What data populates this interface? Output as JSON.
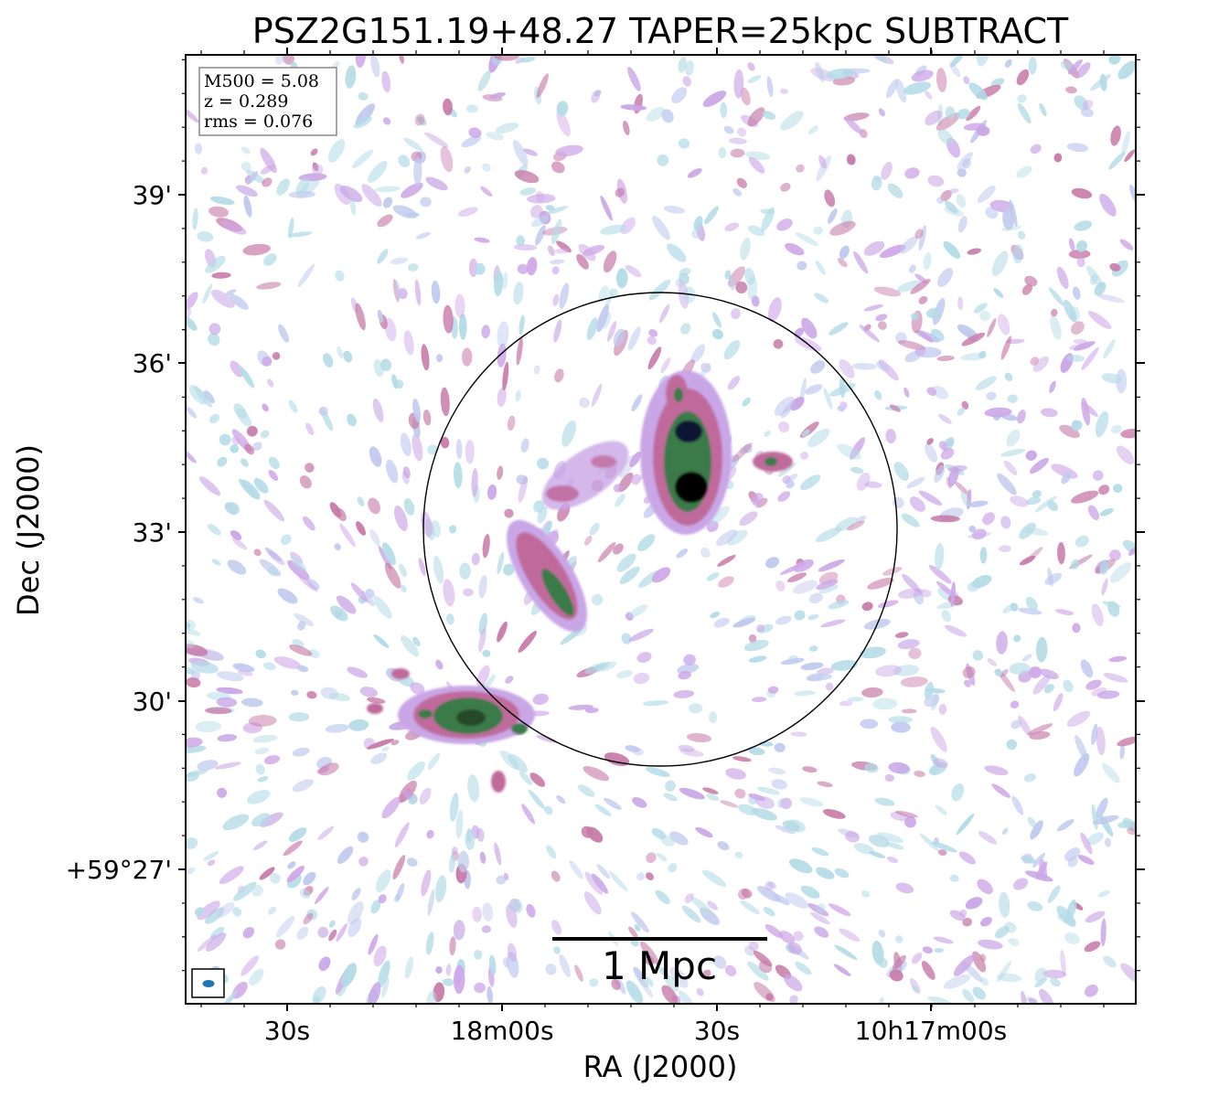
{
  "title": "PSZ2G151.19+48.27 TAPER=25kpc SUBTRACT",
  "axes": {
    "xlabel": "RA (J2000)",
    "ylabel": "Dec (J2000)",
    "x_ticks": [
      "30s",
      "18m00s",
      "30s",
      "10h17m00s"
    ],
    "y_ticks": [
      "39'",
      "36'",
      "33'",
      "30'",
      "+59°27'"
    ]
  },
  "info_box": {
    "m500": "M500 = 5.08",
    "z": "z = 0.289",
    "rms": "rms = 0.076"
  },
  "scale_bar": {
    "label": "1 Mpc"
  },
  "colors": {
    "faint_emission": "#a8d4e0",
    "low_emission": "#c9a6e6",
    "mid_emission": "#c06a9c",
    "high_emission": "#3a7a4a",
    "peak_emission": "#0b1530",
    "beam": "#1f77b4"
  },
  "features": {
    "circle": "R500 region",
    "beam_icon": "beam ellipse"
  }
}
